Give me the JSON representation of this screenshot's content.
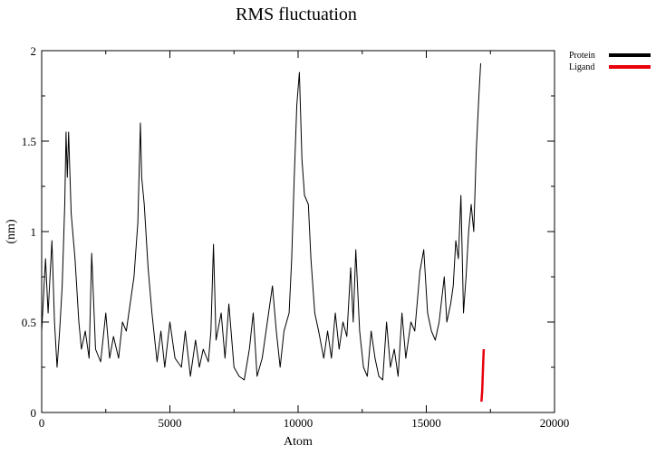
{
  "chart_data": {
    "type": "line",
    "title": "RMS fluctuation",
    "xlabel": "Atom",
    "ylabel": "(nm)",
    "xlim": [
      0,
      20000
    ],
    "ylim": [
      0,
      2
    ],
    "xticks": [
      0,
      5000,
      10000,
      15000,
      20000
    ],
    "yticks": [
      0,
      0.5,
      1,
      1.5,
      2
    ],
    "xtick_labels": [
      "0",
      "5000",
      "10000",
      "15000",
      "20000"
    ],
    "ytick_labels": [
      "0",
      "0.5",
      "1",
      "1.5",
      "2"
    ],
    "grid": false,
    "legend_placement": "outside-top-right",
    "series": [
      {
        "name": "Protein",
        "color": "#000000",
        "points": [
          [
            0,
            0.45
          ],
          [
            150,
            0.85
          ],
          [
            250,
            0.55
          ],
          [
            400,
            0.95
          ],
          [
            500,
            0.5
          ],
          [
            600,
            0.25
          ],
          [
            700,
            0.45
          ],
          [
            800,
            0.7
          ],
          [
            900,
            1.15
          ],
          [
            950,
            1.55
          ],
          [
            1000,
            1.3
          ],
          [
            1050,
            1.55
          ],
          [
            1150,
            1.1
          ],
          [
            1300,
            0.85
          ],
          [
            1450,
            0.5
          ],
          [
            1550,
            0.35
          ],
          [
            1700,
            0.45
          ],
          [
            1850,
            0.3
          ],
          [
            1950,
            0.88
          ],
          [
            2100,
            0.35
          ],
          [
            2300,
            0.28
          ],
          [
            2500,
            0.55
          ],
          [
            2650,
            0.3
          ],
          [
            2800,
            0.42
          ],
          [
            3000,
            0.3
          ],
          [
            3150,
            0.5
          ],
          [
            3300,
            0.45
          ],
          [
            3450,
            0.6
          ],
          [
            3600,
            0.75
          ],
          [
            3750,
            1.05
          ],
          [
            3850,
            1.6
          ],
          [
            3900,
            1.3
          ],
          [
            4000,
            1.15
          ],
          [
            4150,
            0.8
          ],
          [
            4300,
            0.55
          ],
          [
            4500,
            0.28
          ],
          [
            4650,
            0.45
          ],
          [
            4800,
            0.25
          ],
          [
            5000,
            0.5
          ],
          [
            5200,
            0.3
          ],
          [
            5450,
            0.25
          ],
          [
            5600,
            0.45
          ],
          [
            5800,
            0.2
          ],
          [
            6000,
            0.4
          ],
          [
            6150,
            0.25
          ],
          [
            6300,
            0.35
          ],
          [
            6500,
            0.28
          ],
          [
            6600,
            0.45
          ],
          [
            6700,
            0.93
          ],
          [
            6800,
            0.4
          ],
          [
            7000,
            0.55
          ],
          [
            7150,
            0.3
          ],
          [
            7300,
            0.6
          ],
          [
            7500,
            0.25
          ],
          [
            7700,
            0.2
          ],
          [
            7900,
            0.18
          ],
          [
            8100,
            0.35
          ],
          [
            8250,
            0.55
          ],
          [
            8400,
            0.2
          ],
          [
            8600,
            0.3
          ],
          [
            8800,
            0.5
          ],
          [
            9000,
            0.7
          ],
          [
            9150,
            0.45
          ],
          [
            9300,
            0.25
          ],
          [
            9450,
            0.45
          ],
          [
            9550,
            0.5
          ],
          [
            9650,
            0.55
          ],
          [
            9750,
            0.85
          ],
          [
            9850,
            1.3
          ],
          [
            9950,
            1.7
          ],
          [
            10050,
            1.88
          ],
          [
            10150,
            1.4
          ],
          [
            10250,
            1.2
          ],
          [
            10400,
            1.15
          ],
          [
            10500,
            0.85
          ],
          [
            10650,
            0.55
          ],
          [
            10800,
            0.45
          ],
          [
            11000,
            0.3
          ],
          [
            11150,
            0.45
          ],
          [
            11300,
            0.3
          ],
          [
            11450,
            0.55
          ],
          [
            11600,
            0.35
          ],
          [
            11750,
            0.5
          ],
          [
            11900,
            0.42
          ],
          [
            12050,
            0.8
          ],
          [
            12150,
            0.5
          ],
          [
            12250,
            0.9
          ],
          [
            12400,
            0.45
          ],
          [
            12550,
            0.25
          ],
          [
            12700,
            0.2
          ],
          [
            12850,
            0.45
          ],
          [
            13000,
            0.3
          ],
          [
            13150,
            0.2
          ],
          [
            13300,
            0.18
          ],
          [
            13450,
            0.5
          ],
          [
            13600,
            0.25
          ],
          [
            13750,
            0.35
          ],
          [
            13900,
            0.2
          ],
          [
            14050,
            0.55
          ],
          [
            14200,
            0.3
          ],
          [
            14400,
            0.5
          ],
          [
            14550,
            0.45
          ],
          [
            14750,
            0.78
          ],
          [
            14900,
            0.9
          ],
          [
            15050,
            0.55
          ],
          [
            15200,
            0.45
          ],
          [
            15350,
            0.4
          ],
          [
            15500,
            0.5
          ],
          [
            15700,
            0.75
          ],
          [
            15800,
            0.5
          ],
          [
            15950,
            0.6
          ],
          [
            16050,
            0.7
          ],
          [
            16150,
            0.95
          ],
          [
            16250,
            0.85
          ],
          [
            16350,
            1.2
          ],
          [
            16450,
            0.55
          ],
          [
            16550,
            0.75
          ],
          [
            16650,
            1.0
          ],
          [
            16750,
            1.15
          ],
          [
            16850,
            1.0
          ],
          [
            16950,
            1.45
          ],
          [
            17050,
            1.75
          ],
          [
            17120,
            1.93
          ]
        ]
      },
      {
        "name": "Ligand",
        "color": "#e8000b",
        "points": [
          [
            17150,
            0.06
          ],
          [
            17180,
            0.12
          ],
          [
            17200,
            0.2
          ],
          [
            17220,
            0.28
          ],
          [
            17240,
            0.35
          ]
        ]
      }
    ]
  }
}
